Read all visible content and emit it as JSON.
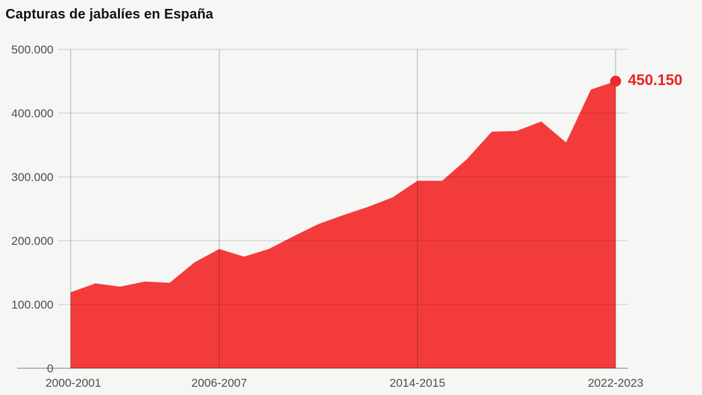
{
  "title": "Capturas de jabalíes en España",
  "end_annotation": {
    "label": "450.150"
  },
  "colors": {
    "background": "#f6f6f4",
    "area_fill": "#f33b3b",
    "dot_fill": "#ee2b2b",
    "end_label_text": "#e62525",
    "grid_horizontal": "rgba(0,0,0,0.15)",
    "grid_vertical": "rgba(0,0,0,0.30)",
    "baseline": "rgba(0,0,0,0.35)",
    "axis_text": "#4c4c4c",
    "title_text": "#111111"
  },
  "chart_data": {
    "type": "area",
    "title": "Capturas de jabalíes en España",
    "x_categories": [
      "2000-2001",
      "2001-2002",
      "2002-2003",
      "2003-2004",
      "2004-2005",
      "2005-2006",
      "2006-2007",
      "2007-2008",
      "2008-2009",
      "2009-2010",
      "2010-2011",
      "2011-2012",
      "2012-2013",
      "2013-2014",
      "2014-2015",
      "2015-2016",
      "2016-2017",
      "2017-2018",
      "2018-2019",
      "2019-2020",
      "2020-2021",
      "2021-2022",
      "2022-2023"
    ],
    "values": [
      119000,
      133000,
      128000,
      136000,
      134000,
      166000,
      187000,
      175000,
      187000,
      207000,
      226000,
      240000,
      253000,
      268000,
      294000,
      294000,
      328000,
      371000,
      372000,
      387000,
      354000,
      437000,
      450150
    ],
    "x_tick_labels": [
      "2000-2001",
      "2006-2007",
      "2014-2015",
      "2022-2023"
    ],
    "x_tick_indices": [
      0,
      6,
      14,
      22
    ],
    "y_ticks": [
      0,
      100000,
      200000,
      300000,
      400000,
      500000
    ],
    "y_tick_labels": [
      "0",
      "100.000",
      "200.000",
      "300.000",
      "400.000",
      "500.000"
    ],
    "ylim": [
      0,
      500000
    ],
    "grid": true,
    "legend": false,
    "annotation": {
      "label": "450.150",
      "value": 450150,
      "at_index": 22
    }
  }
}
